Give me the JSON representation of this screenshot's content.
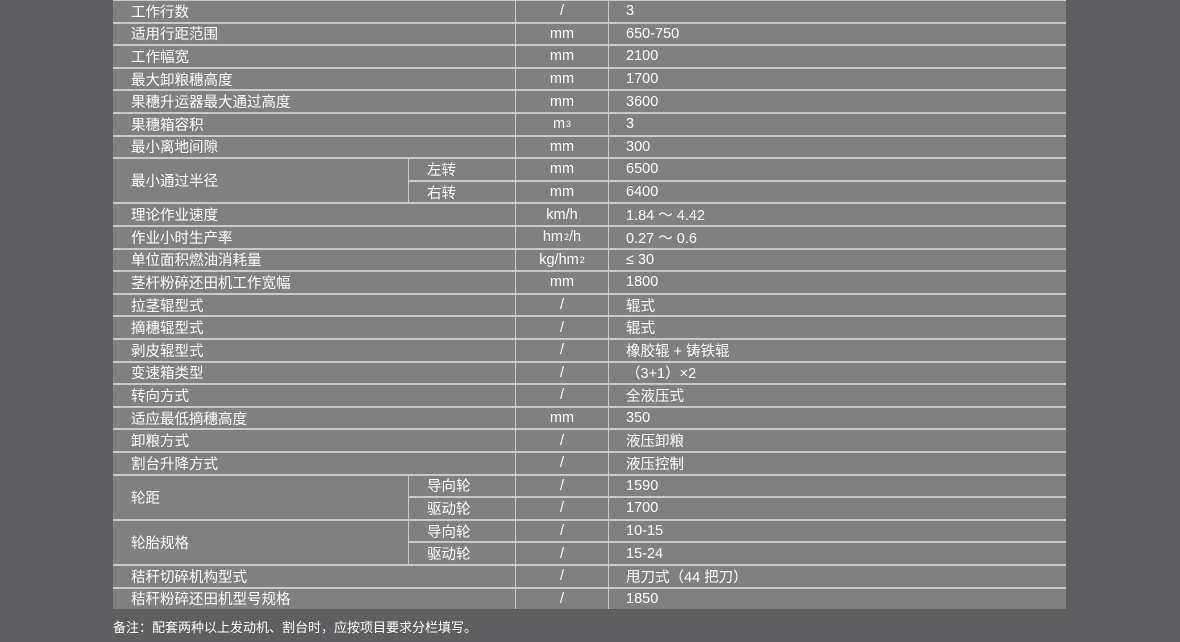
{
  "rows": [
    {
      "name": "工作行数",
      "unit": "/",
      "value": "3"
    },
    {
      "name": "适用行距范围",
      "unit": "mm",
      "value": "650-750"
    },
    {
      "name": "工作幅宽",
      "unit": "mm",
      "value": "2100"
    },
    {
      "name": "最大卸粮穗高度",
      "unit": "mm",
      "value": "1700"
    },
    {
      "name": "果穗升运器最大通过高度",
      "unit": "mm",
      "value": "3600"
    },
    {
      "name": "果穗箱容积",
      "unit": "m",
      "unit_sup": "3",
      "value": "3"
    },
    {
      "name": "最小离地间隙",
      "unit": "mm",
      "value": "300"
    },
    {
      "name": "最小通过半径",
      "subs": [
        {
          "sub": "左转",
          "unit": "mm",
          "value": "6500"
        },
        {
          "sub": "右转",
          "unit": "mm",
          "value": "6400"
        }
      ]
    },
    {
      "name": "理论作业速度",
      "unit": "km/h",
      "value": "1.84 ～ 4.42"
    },
    {
      "name": "作业小时生产率",
      "unit": "hm",
      "unit_sup": "2",
      "unit_tail": "/h",
      "value": "0.27 ～ 0.6"
    },
    {
      "name": "单位面积燃油消耗量",
      "unit": "kg/hm",
      "unit_sup": "2",
      "value": "≤ 30"
    },
    {
      "name": "茎杆粉碎还田机工作宽幅",
      "unit": "mm",
      "value": "1800"
    },
    {
      "name": "拉茎辊型式",
      "unit": "/",
      "value": "辊式"
    },
    {
      "name": "摘穗辊型式",
      "unit": "/",
      "value": "辊式"
    },
    {
      "name": "剥皮辊型式",
      "unit": "/",
      "value": "橡胶辊 + 铸铁辊"
    },
    {
      "name": "变速箱类型",
      "unit": "/",
      "value": "（3+1）×2"
    },
    {
      "name": "转向方式",
      "unit": "/",
      "value": "全液压式"
    },
    {
      "name": "适应最低摘穗高度",
      "unit": "mm",
      "value": "350"
    },
    {
      "name": "卸粮方式",
      "unit": "/",
      "value": "液压卸粮"
    },
    {
      "name": "割台升降方式",
      "unit": "/",
      "value": "液压控制"
    },
    {
      "name": "轮距",
      "subs": [
        {
          "sub": "导向轮",
          "unit": "/",
          "value": "1590"
        },
        {
          "sub": "驱动轮",
          "unit": "/",
          "value": "1700"
        }
      ]
    },
    {
      "name": "轮胎规格",
      "subs": [
        {
          "sub": "导向轮",
          "unit": "/",
          "value": "10-15"
        },
        {
          "sub": "驱动轮",
          "unit": "/",
          "value": "15-24"
        }
      ]
    },
    {
      "name": "秸秆切碎机构型式",
      "unit": "/",
      "value": "甩刀式（44 把刀）"
    },
    {
      "name": "秸秆粉碎还田机型号规格",
      "unit": "/",
      "value": "1850"
    }
  ],
  "note": "备注：配套两种以上发动机、割台时，应按项目要求分栏填写。"
}
